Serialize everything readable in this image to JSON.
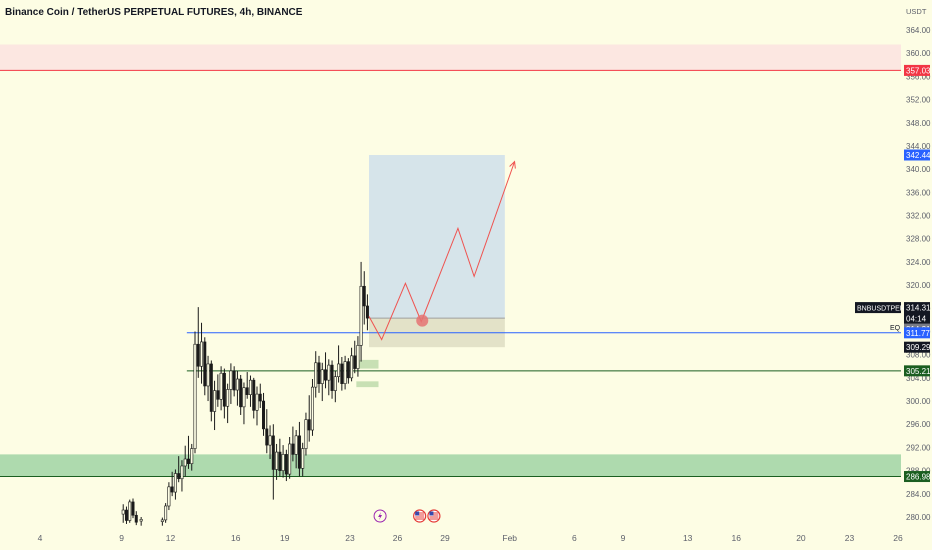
{
  "chart_data": {
    "type": "candlestick",
    "title": "Binance Coin / TetherUS PERPETUAL FUTURES, 4h, BINANCE",
    "currency": "USDT",
    "ylim": [
      278,
      366
    ],
    "y_ticks": [
      364,
      360,
      356,
      352,
      348,
      344,
      340,
      336,
      332,
      328,
      324,
      320,
      316,
      312,
      308,
      304,
      300,
      296,
      292,
      288,
      284,
      280
    ],
    "x_ticks": [
      "4",
      "9",
      "12",
      "16",
      "19",
      "23",
      "26",
      "29",
      "Feb",
      "6",
      "9",
      "13",
      "16",
      "20",
      "23",
      "26"
    ],
    "x_label_positions_day": [
      4,
      9,
      12,
      16,
      19,
      23,
      26,
      29,
      33,
      37,
      40,
      44,
      47,
      51,
      54,
      57
    ],
    "price_badges": [
      {
        "label": "357.03",
        "value": 357.03,
        "color": "#f23645"
      },
      {
        "label": "342.44",
        "value": 342.44,
        "color": "#2962ff"
      },
      {
        "label": "314.31",
        "value": 314.31,
        "color": "#131722",
        "symbol": "BNBUSDTPERP",
        "countdown": "04:14"
      },
      {
        "label": "314.31",
        "value": 314.31,
        "color": "#787b86",
        "secondary": true
      },
      {
        "label": "311.77",
        "value": 311.77,
        "color": "#2962ff",
        "tag": "EQ"
      },
      {
        "label": "309.29",
        "value": 309.29,
        "color": "#131722"
      },
      {
        "label": "305.21",
        "value": 305.21,
        "color": "#1b5e20"
      },
      {
        "label": "286.98",
        "value": 286.98,
        "color": "#1b5e20"
      }
    ],
    "zones": [
      {
        "name": "resistance-zone",
        "ymin": 357.03,
        "ymax": 361.5,
        "color": "#fce4e0"
      },
      {
        "name": "support-zone",
        "ymin": 286.98,
        "ymax": 290.8,
        "color": "#a5d6a7"
      }
    ],
    "horizontal_lines": [
      {
        "value": 357.03,
        "color": "#f23645"
      },
      {
        "value": 311.77,
        "color": "#2962ff",
        "from_day": 13
      },
      {
        "value": 305.21,
        "color": "#1b5e20",
        "from_day": 13
      },
      {
        "value": 286.98,
        "color": "#1b5e20"
      }
    ],
    "target_box": {
      "x_from_day": 24.2,
      "x_to_day": 32.7,
      "y_top": 342.44,
      "y_bottom": 314.31,
      "color": "#d6e4ea"
    },
    "stop_box": {
      "x_from_day": 24.2,
      "x_to_day": 32.7,
      "y_top": 314.31,
      "y_bottom": 309.29,
      "color": "#e3e2c8"
    },
    "projection_path": [
      [
        24.2,
        314.6
      ],
      [
        25.0,
        310.6
      ],
      [
        26.5,
        320.3
      ],
      [
        27.5,
        313.7
      ],
      [
        29.8,
        329.8
      ],
      [
        30.8,
        321.5
      ],
      [
        33.3,
        341.3
      ]
    ],
    "event_icons": [
      {
        "name": "lightning-event-icon",
        "day": 24.9
      },
      {
        "name": "us-flag-event-icon",
        "day": 27.4
      },
      {
        "name": "us-flag-event-icon",
        "day": 28.3
      }
    ],
    "candles": [
      {
        "d": 9.1,
        "o": 280.5,
        "h": 282.2,
        "l": 279.0,
        "c": 281.2
      },
      {
        "d": 9.3,
        "o": 281.2,
        "h": 281.8,
        "l": 278.8,
        "c": 279.4
      },
      {
        "d": 9.5,
        "o": 279.4,
        "h": 283.0,
        "l": 279.0,
        "c": 282.6
      },
      {
        "d": 9.7,
        "o": 282.6,
        "h": 283.2,
        "l": 279.8,
        "c": 280.3
      },
      {
        "d": 9.9,
        "o": 280.3,
        "h": 281.0,
        "l": 278.6,
        "c": 279.1
      },
      {
        "d": 10.2,
        "o": 279.3,
        "h": 280.0,
        "l": 278.5,
        "c": 279.6
      },
      {
        "d": 11.5,
        "o": 279.2,
        "h": 279.9,
        "l": 278.5,
        "c": 279.5
      },
      {
        "d": 11.7,
        "o": 279.5,
        "h": 282.4,
        "l": 279.0,
        "c": 281.9
      },
      {
        "d": 11.9,
        "o": 281.9,
        "h": 286.0,
        "l": 281.2,
        "c": 285.2
      },
      {
        "d": 12.1,
        "o": 285.2,
        "h": 287.8,
        "l": 283.6,
        "c": 284.3
      },
      {
        "d": 12.3,
        "o": 284.3,
        "h": 288.2,
        "l": 283.0,
        "c": 287.5
      },
      {
        "d": 12.5,
        "o": 287.5,
        "h": 290.5,
        "l": 286.0,
        "c": 286.6
      },
      {
        "d": 12.7,
        "o": 286.6,
        "h": 289.8,
        "l": 284.4,
        "c": 288.8
      },
      {
        "d": 12.9,
        "o": 288.8,
        "h": 292.3,
        "l": 287.0,
        "c": 290.0
      },
      {
        "d": 13.1,
        "o": 290.0,
        "h": 294.0,
        "l": 288.3,
        "c": 289.2
      },
      {
        "d": 13.3,
        "o": 289.2,
        "h": 292.6,
        "l": 288.0,
        "c": 291.8
      },
      {
        "d": 13.5,
        "o": 291.8,
        "h": 312.0,
        "l": 291.0,
        "c": 309.8
      },
      {
        "d": 13.7,
        "o": 309.8,
        "h": 316.2,
        "l": 304.0,
        "c": 306.0
      },
      {
        "d": 13.9,
        "o": 306.0,
        "h": 313.5,
        "l": 303.0,
        "c": 310.2
      },
      {
        "d": 14.1,
        "o": 310.2,
        "h": 311.0,
        "l": 301.0,
        "c": 302.6
      },
      {
        "d": 14.3,
        "o": 302.6,
        "h": 307.8,
        "l": 300.0,
        "c": 306.4
      },
      {
        "d": 14.5,
        "o": 306.4,
        "h": 307.0,
        "l": 296.5,
        "c": 298.2
      },
      {
        "d": 14.7,
        "o": 298.2,
        "h": 303.5,
        "l": 295.0,
        "c": 301.8
      },
      {
        "d": 14.9,
        "o": 301.8,
        "h": 304.6,
        "l": 299.0,
        "c": 300.3
      },
      {
        "d": 15.1,
        "o": 300.3,
        "h": 306.0,
        "l": 298.4,
        "c": 304.8
      },
      {
        "d": 15.3,
        "o": 304.8,
        "h": 305.6,
        "l": 297.0,
        "c": 299.1
      },
      {
        "d": 15.5,
        "o": 299.1,
        "h": 303.0,
        "l": 296.2,
        "c": 302.0
      },
      {
        "d": 15.7,
        "o": 302.0,
        "h": 306.5,
        "l": 299.5,
        "c": 305.2
      },
      {
        "d": 15.9,
        "o": 305.2,
        "h": 306.0,
        "l": 300.8,
        "c": 301.9
      },
      {
        "d": 16.1,
        "o": 301.9,
        "h": 305.2,
        "l": 299.2,
        "c": 303.8
      },
      {
        "d": 16.3,
        "o": 303.8,
        "h": 304.5,
        "l": 297.6,
        "c": 299.0
      },
      {
        "d": 16.5,
        "o": 299.0,
        "h": 303.2,
        "l": 296.0,
        "c": 302.3
      },
      {
        "d": 16.7,
        "o": 302.3,
        "h": 305.0,
        "l": 300.4,
        "c": 301.1
      },
      {
        "d": 16.9,
        "o": 301.1,
        "h": 304.4,
        "l": 299.0,
        "c": 303.6
      },
      {
        "d": 17.1,
        "o": 303.6,
        "h": 304.0,
        "l": 297.0,
        "c": 298.4
      },
      {
        "d": 17.3,
        "o": 298.4,
        "h": 302.5,
        "l": 295.8,
        "c": 301.2
      },
      {
        "d": 17.5,
        "o": 301.2,
        "h": 303.0,
        "l": 298.8,
        "c": 300.0
      },
      {
        "d": 17.7,
        "o": 300.0,
        "h": 301.4,
        "l": 294.0,
        "c": 295.2
      },
      {
        "d": 17.9,
        "o": 295.2,
        "h": 298.6,
        "l": 291.0,
        "c": 292.4
      },
      {
        "d": 18.1,
        "o": 292.4,
        "h": 295.8,
        "l": 290.0,
        "c": 294.0
      },
      {
        "d": 18.3,
        "o": 294.0,
        "h": 296.0,
        "l": 283.0,
        "c": 288.2
      },
      {
        "d": 18.5,
        "o": 288.2,
        "h": 292.6,
        "l": 286.4,
        "c": 291.2
      },
      {
        "d": 18.7,
        "o": 291.2,
        "h": 293.5,
        "l": 287.0,
        "c": 288.0
      },
      {
        "d": 18.9,
        "o": 288.0,
        "h": 292.4,
        "l": 286.8,
        "c": 290.8
      },
      {
        "d": 19.1,
        "o": 290.8,
        "h": 291.6,
        "l": 286.2,
        "c": 287.4
      },
      {
        "d": 19.3,
        "o": 287.4,
        "h": 293.8,
        "l": 286.6,
        "c": 292.6
      },
      {
        "d": 19.5,
        "o": 292.6,
        "h": 295.6,
        "l": 289.6,
        "c": 290.8
      },
      {
        "d": 19.7,
        "o": 290.8,
        "h": 295.0,
        "l": 288.4,
        "c": 294.0
      },
      {
        "d": 19.9,
        "o": 294.0,
        "h": 296.4,
        "l": 287.0,
        "c": 288.4
      },
      {
        "d": 20.1,
        "o": 288.4,
        "h": 292.8,
        "l": 287.0,
        "c": 291.8
      },
      {
        "d": 20.3,
        "o": 291.8,
        "h": 298.0,
        "l": 290.6,
        "c": 296.8
      },
      {
        "d": 20.5,
        "o": 296.8,
        "h": 301.0,
        "l": 293.0,
        "c": 295.0
      },
      {
        "d": 20.7,
        "o": 295.0,
        "h": 303.8,
        "l": 294.0,
        "c": 302.4
      },
      {
        "d": 20.9,
        "o": 302.4,
        "h": 308.6,
        "l": 300.6,
        "c": 306.6
      },
      {
        "d": 21.1,
        "o": 306.6,
        "h": 307.8,
        "l": 301.4,
        "c": 303.0
      },
      {
        "d": 21.3,
        "o": 303.0,
        "h": 306.6,
        "l": 300.0,
        "c": 305.4
      },
      {
        "d": 21.5,
        "o": 305.4,
        "h": 308.4,
        "l": 302.2,
        "c": 303.6
      },
      {
        "d": 21.7,
        "o": 303.6,
        "h": 307.2,
        "l": 301.0,
        "c": 306.2
      },
      {
        "d": 21.9,
        "o": 306.2,
        "h": 307.0,
        "l": 300.4,
        "c": 301.8
      },
      {
        "d": 22.1,
        "o": 301.8,
        "h": 305.2,
        "l": 299.8,
        "c": 304.2
      },
      {
        "d": 22.3,
        "o": 304.2,
        "h": 309.6,
        "l": 303.2,
        "c": 306.4
      },
      {
        "d": 22.5,
        "o": 306.4,
        "h": 307.6,
        "l": 301.8,
        "c": 303.0
      },
      {
        "d": 22.7,
        "o": 303.0,
        "h": 307.8,
        "l": 302.0,
        "c": 306.8
      },
      {
        "d": 22.9,
        "o": 306.8,
        "h": 307.4,
        "l": 303.0,
        "c": 304.0
      },
      {
        "d": 23.1,
        "o": 304.0,
        "h": 309.2,
        "l": 303.4,
        "c": 307.8
      },
      {
        "d": 23.3,
        "o": 307.8,
        "h": 310.4,
        "l": 304.8,
        "c": 305.6
      },
      {
        "d": 23.5,
        "o": 305.6,
        "h": 311.2,
        "l": 304.2,
        "c": 309.6
      },
      {
        "d": 23.7,
        "o": 309.6,
        "h": 324.0,
        "l": 306.8,
        "c": 319.8
      },
      {
        "d": 23.9,
        "o": 319.8,
        "h": 322.4,
        "l": 313.2,
        "c": 316.4
      },
      {
        "d": 24.1,
        "o": 316.4,
        "h": 318.4,
        "l": 312.2,
        "c": 314.3
      }
    ]
  }
}
